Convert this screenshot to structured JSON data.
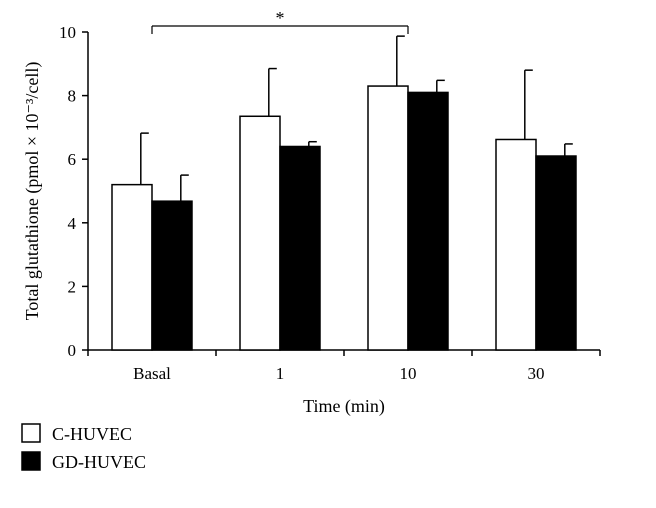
{
  "chart_data": {
    "type": "bar",
    "title": "",
    "xlabel": "Time (min)",
    "ylabel": "Total glutathione (pmol × 10⁻³/cell)",
    "ylim": [
      0,
      10
    ],
    "yticks": [
      0,
      2,
      4,
      6,
      8,
      10
    ],
    "categories": [
      "Basal",
      "1",
      "10",
      "30"
    ],
    "series": [
      {
        "name": "C-HUVEC",
        "values": [
          5.2,
          7.35,
          8.3,
          6.62
        ],
        "errors": [
          1.62,
          1.5,
          1.57,
          2.18
        ],
        "color": "#ffffff"
      },
      {
        "name": "GD-HUVEC",
        "values": [
          4.68,
          6.4,
          8.1,
          6.1
        ],
        "errors": [
          0.82,
          0.15,
          0.38,
          0.38
        ],
        "color": "#000000"
      }
    ],
    "legend_position": "bottom-left",
    "significance": {
      "label": "*",
      "from_category": "Basal",
      "to_category": "10",
      "y": 10.2
    }
  }
}
